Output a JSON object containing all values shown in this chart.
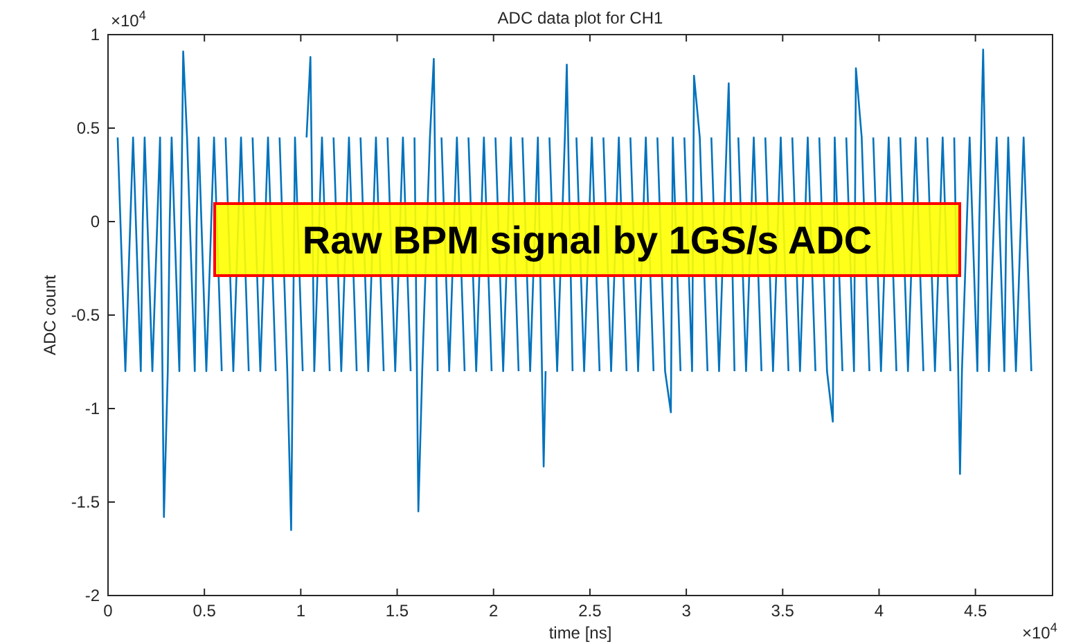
{
  "chart_data": {
    "type": "line",
    "title": "ADC data plot for CH1",
    "xlabel": "time [ns]",
    "ylabel": "ADC count",
    "annotations": [
      "Raw BPM signal by 1GS/s ADC",
      "×10$^{4}$",
      "×10$^{4}$"
    ],
    "xlim": [
      0,
      4.9
    ],
    "xticks": [
      0,
      0.5,
      1,
      1.5,
      2,
      2.5,
      3,
      3.5,
      4,
      4.5
    ],
    "ylim": [
      -2,
      1
    ],
    "yticks": [
      -2,
      -1.5,
      -1,
      -0.5,
      0,
      0.5,
      1
    ],
    "series": [
      {
        "color": "#0072bd",
        "x": [
          0.05,
          0.09,
          0.13,
          0.17,
          0.18,
          0.19,
          0.23,
          0.27,
          0.29,
          0.31,
          0.32,
          0.33,
          0.37,
          0.39,
          0.41,
          0.45,
          0.46,
          0.47,
          0.51,
          0.55,
          0.59,
          0.6,
          0.61,
          0.65,
          0.69,
          0.73,
          0.74,
          0.75,
          0.79,
          0.83,
          0.87,
          0.88,
          0.89,
          0.93,
          0.95,
          0.97,
          1.01,
          1.02,
          1.03,
          1.05,
          1.07,
          1.11,
          1.15,
          1.16,
          1.17,
          1.21,
          1.25,
          1.29,
          1.3,
          1.31,
          1.35,
          1.39,
          1.43,
          1.44,
          1.45,
          1.49,
          1.53,
          1.57,
          1.58,
          1.59,
          1.61,
          1.63,
          1.67,
          1.69,
          1.71,
          1.72,
          1.73,
          1.77,
          1.81,
          1.85,
          1.86,
          1.87,
          1.91,
          1.95,
          1.99,
          2,
          2.01,
          2.05,
          2.09,
          2.13,
          2.14,
          2.15,
          2.19,
          2.23,
          2.26,
          2.27,
          2.28,
          2.29,
          2.33,
          2.37,
          2.38,
          2.41,
          2.42,
          2.43,
          2.47,
          2.51,
          2.55,
          2.56,
          2.57,
          2.61,
          2.65,
          2.69,
          2.7,
          2.71,
          2.75,
          2.79,
          2.83,
          2.84,
          2.85,
          2.89,
          2.92,
          2.93,
          2.97,
          2.98,
          2.99,
          3.03,
          3.04,
          3.07,
          3.11,
          3.12,
          3.13,
          3.17,
          3.21,
          3.22,
          3.25,
          3.26,
          3.27,
          3.31,
          3.35,
          3.39,
          3.4,
          3.41,
          3.45,
          3.49,
          3.53,
          3.54,
          3.55,
          3.59,
          3.63,
          3.67,
          3.68,
          3.69,
          3.73,
          3.76,
          3.77,
          3.81,
          3.82,
          3.83,
          3.87,
          3.88,
          3.91,
          3.95,
          3.96,
          3.97,
          4.01,
          4.05,
          4.09,
          4.1,
          4.11,
          4.15,
          4.19,
          4.23,
          4.24,
          4.25,
          4.29,
          4.33,
          4.37,
          4.38,
          4.39,
          4.42,
          4.43,
          4.47,
          4.51,
          4.52,
          4.53,
          4.54,
          4.57,
          4.61,
          4.65,
          4.66,
          4.67,
          4.71,
          4.75,
          4.79
        ],
        "values": [
          0.45,
          -0.8,
          0.45,
          -0.8,
          0,
          0.45,
          -0.8,
          0.45,
          -1.58,
          -0.8,
          0,
          0.45,
          -0.8,
          0.91,
          0.45,
          -0.8,
          0,
          0.45,
          -0.8,
          0.45,
          -0.8,
          null,
          0.45,
          -0.8,
          0.45,
          -0.8,
          null,
          0.45,
          -0.8,
          0.45,
          -0.8,
          null,
          0.45,
          -0.8,
          -1.65,
          0.45,
          -0.8,
          null,
          0.45,
          0.88,
          -0.8,
          0.45,
          -0.8,
          null,
          0.45,
          -0.8,
          0.45,
          -0.8,
          null,
          0.45,
          -0.8,
          0.45,
          -0.8,
          null,
          0.45,
          -0.8,
          0.45,
          -0.8,
          null,
          0.45,
          -1.55,
          -0.8,
          0.45,
          0.87,
          -0.8,
          null,
          0.45,
          -0.8,
          0.45,
          -0.8,
          null,
          0.45,
          -0.8,
          0.45,
          -0.8,
          null,
          0.45,
          -0.8,
          0.45,
          -0.8,
          null,
          0.45,
          -0.8,
          0.45,
          -1.31,
          -0.8,
          null,
          0.45,
          -0.8,
          0.45,
          0.84,
          -0.8,
          null,
          0.45,
          -0.8,
          0.45,
          -0.8,
          null,
          0.45,
          -0.8,
          0.45,
          -0.8,
          null,
          0.45,
          -0.8,
          0.45,
          -0.8,
          null,
          0.45,
          -0.8,
          -1.02,
          0.45,
          -0.8,
          null,
          0.45,
          -0.8,
          0.78,
          0.45,
          -0.8,
          null,
          0.45,
          -0.8,
          0.45,
          0.74,
          -0.8,
          null,
          0.45,
          -0.8,
          0.45,
          -0.8,
          null,
          0.45,
          -0.8,
          0.45,
          -0.8,
          null,
          0.45,
          -0.8,
          0.45,
          -0.8,
          null,
          0.45,
          -0.8,
          -1.07,
          0.45,
          -0.8,
          null,
          0.45,
          -0.8,
          0.82,
          0.45,
          -0.8,
          null,
          0.45,
          -0.8,
          0.45,
          -0.8,
          null,
          0.45,
          -0.8,
          0.45,
          -0.8,
          null,
          0.45,
          -0.8,
          0.45,
          -0.8,
          null,
          0.45,
          -1.35,
          -0.8,
          0.45,
          -0.8,
          0,
          0.45,
          0.92,
          -0.8,
          0.45,
          -0.8,
          0,
          0.45,
          -0.8,
          0.45,
          -0.8
        ]
      }
    ]
  }
}
